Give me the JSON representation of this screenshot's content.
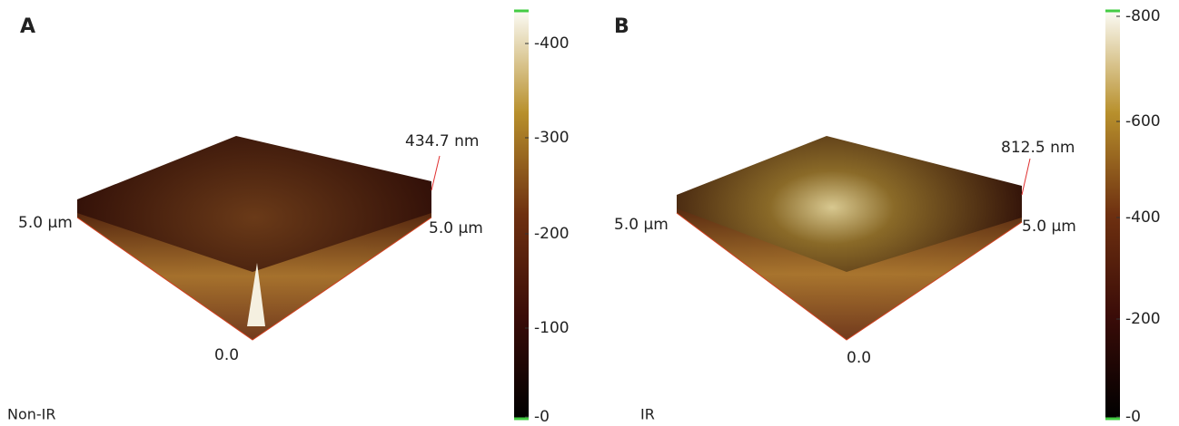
{
  "panels": [
    {
      "letter": "A",
      "caption": "Non-IR",
      "x_label": "5.0 µm",
      "y_label": "5.0 µm",
      "origin": "0.0",
      "height": "434.7 nm",
      "colorbar_ticks": [
        "-400",
        "-300",
        "-200",
        "-100",
        "-0"
      ]
    },
    {
      "letter": "B",
      "caption": "IR",
      "x_label": "5.0 µm",
      "y_label": "5.0 µm",
      "origin": "0.0",
      "height": "812.5 nm",
      "colorbar_ticks": [
        "-800",
        "-600",
        "-400",
        "-200",
        "-0"
      ]
    }
  ]
}
